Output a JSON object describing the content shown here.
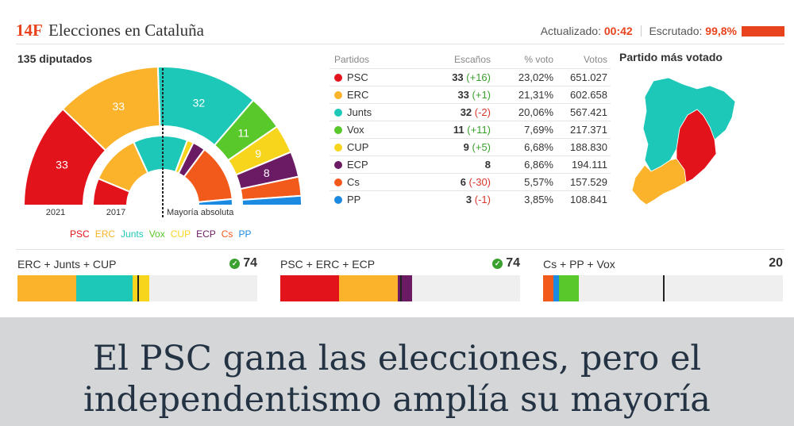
{
  "header": {
    "tag": "14F",
    "title": "Elecciones en Cataluña",
    "updated_label": "Actualizado:",
    "updated_value": "00:42",
    "counted_label": "Escrutado:",
    "counted_value": "99,8%",
    "counted_fraction": 0.998,
    "accent_color": "#e8431c"
  },
  "chart_data": {
    "type": "table",
    "seats_title": "135 diputados",
    "majority_label": "Mayoría absoluta",
    "ring_labels": {
      "outer": "2021",
      "inner": "2017"
    },
    "total_seats": 135,
    "majority": 68,
    "columns": [
      "Partidos",
      "Escaños",
      "% voto",
      "Votos"
    ],
    "parties": [
      {
        "name": "PSC",
        "color": "#e3131c",
        "seats": 33,
        "change": "(+16)",
        "trend": "up",
        "pct": "23,02%",
        "votes": "651.027",
        "seats_2017": 17
      },
      {
        "name": "ERC",
        "color": "#fbb32b",
        "seats": 33,
        "change": "(+1)",
        "trend": "up",
        "pct": "21,31%",
        "votes": "602.658",
        "seats_2017": 32
      },
      {
        "name": "Junts",
        "color": "#1dc8b8",
        "seats": 32,
        "change": "(-2)",
        "trend": "down",
        "pct": "20,06%",
        "votes": "567.421",
        "seats_2017": 34
      },
      {
        "name": "Vox",
        "color": "#58c82a",
        "seats": 11,
        "change": "(+11)",
        "trend": "up",
        "pct": "7,69%",
        "votes": "217.371",
        "seats_2017": 0
      },
      {
        "name": "CUP",
        "color": "#f7d51d",
        "seats": 9,
        "change": "(+5)",
        "trend": "up",
        "pct": "6,68%",
        "votes": "188.830",
        "seats_2017": 4
      },
      {
        "name": "ECP",
        "color": "#6a1b63",
        "seats": 8,
        "change": "",
        "trend": "none",
        "pct": "6,86%",
        "votes": "194.111",
        "seats_2017": 8
      },
      {
        "name": "Cs",
        "color": "#f25a1c",
        "seats": 6,
        "change": "(-30)",
        "trend": "down",
        "pct": "5,57%",
        "votes": "157.529",
        "seats_2017": 36
      },
      {
        "name": "PP",
        "color": "#1b8ae0",
        "seats": 3,
        "change": "(-1)",
        "trend": "down",
        "pct": "3,85%",
        "votes": "108.841",
        "seats_2017": 4
      }
    ],
    "legend_order": [
      "PSC",
      "ERC",
      "Junts",
      "Vox",
      "CUP",
      "ECP",
      "Cs",
      "PP"
    ],
    "coalitions": [
      {
        "name": "ERC + Junts + CUP",
        "total": "74",
        "majority_reached": true,
        "parties": [
          "ERC",
          "Junts",
          "CUP"
        ]
      },
      {
        "name": "PSC + ERC + ECP",
        "total": "74",
        "majority_reached": true,
        "parties": [
          "PSC",
          "ERC",
          "ECP"
        ]
      },
      {
        "name": "Cs + PP + Vox",
        "total": "20",
        "majority_reached": false,
        "parties": [
          "Cs",
          "PP",
          "Vox"
        ]
      }
    ]
  },
  "map": {
    "title": "Partido más votado",
    "regions": [
      {
        "name": "north",
        "winner": "Junts"
      },
      {
        "name": "center",
        "winner": "PSC"
      },
      {
        "name": "south",
        "winner": "ERC"
      }
    ]
  },
  "banner": {
    "line1": "El PSC gana las elecciones, pero el",
    "line2": "independentismo amplía su mayoría"
  }
}
